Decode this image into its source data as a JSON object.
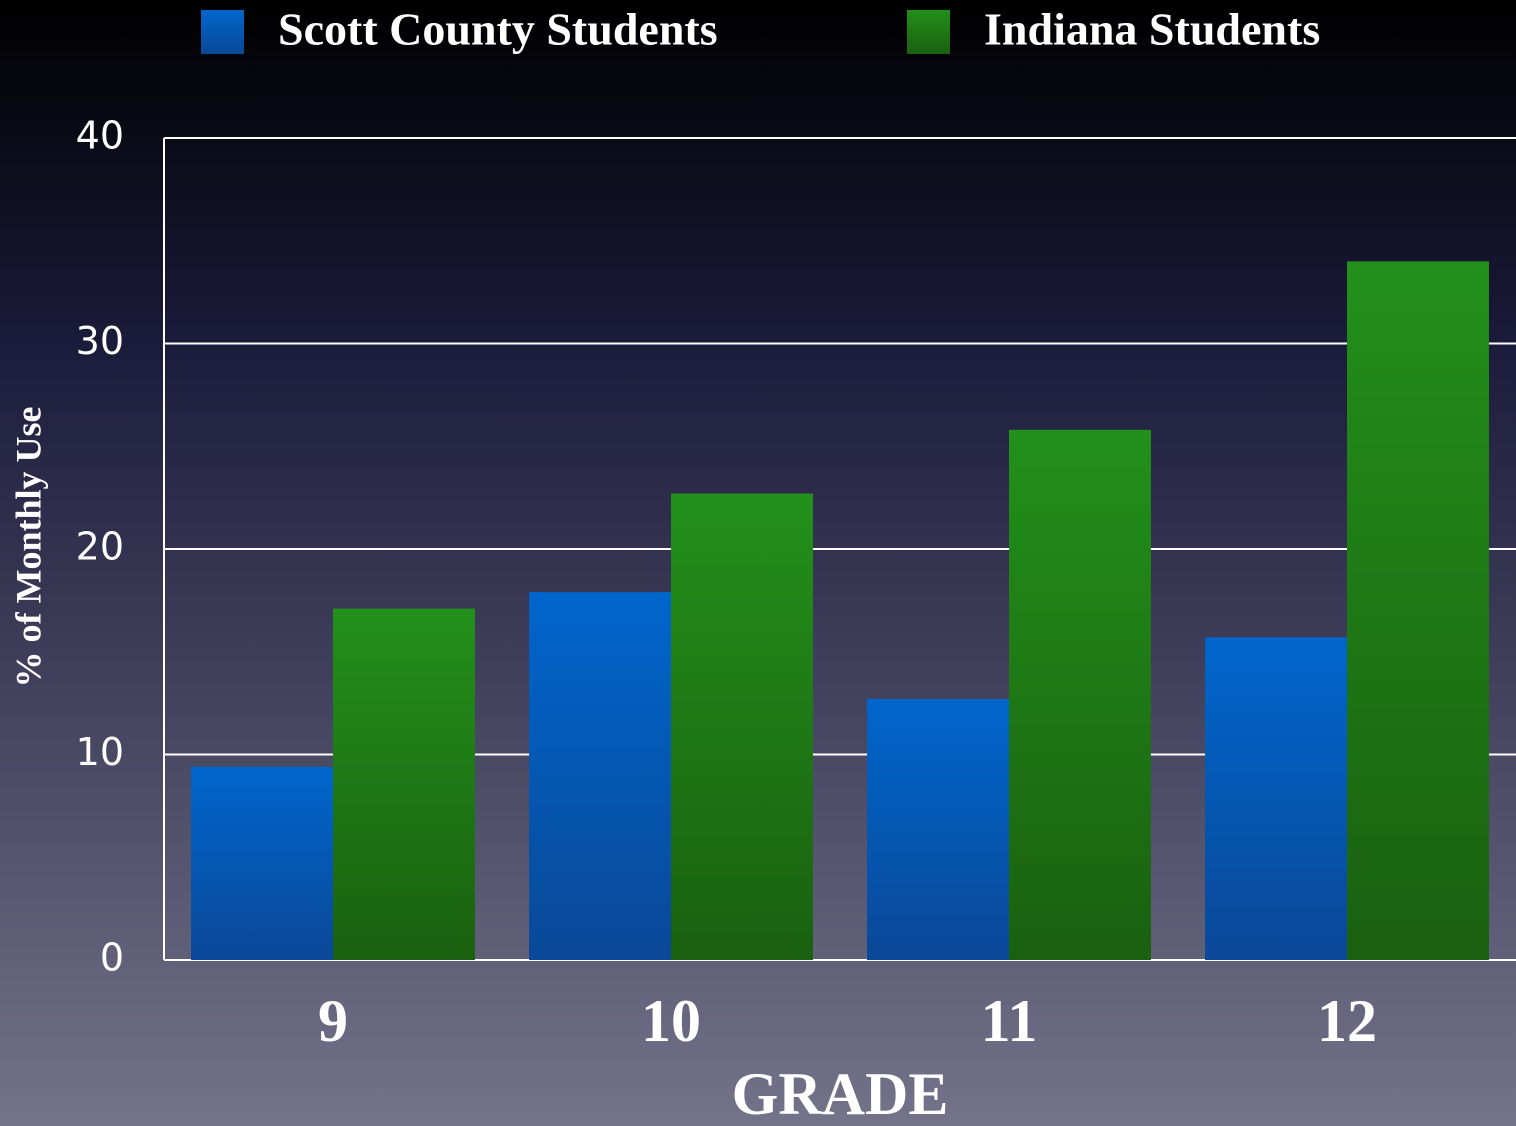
{
  "chart_data": {
    "type": "bar",
    "xlabel": "GRADE",
    "ylabel": "% of Monthly Use",
    "categories": [
      "9",
      "10",
      "11",
      "12"
    ],
    "series": [
      {
        "name": "Scott County Students",
        "color": "#0066cc",
        "values": [
          9.4,
          17.9,
          12.7,
          15.7
        ]
      },
      {
        "name": "Indiana Students",
        "color": "#22901a",
        "values": [
          17.1,
          22.7,
          25.8,
          34.0
        ]
      }
    ],
    "ylim": [
      0,
      40
    ],
    "yticks": [
      0,
      10,
      20,
      30,
      40
    ],
    "grid": true,
    "legend": "top"
  }
}
